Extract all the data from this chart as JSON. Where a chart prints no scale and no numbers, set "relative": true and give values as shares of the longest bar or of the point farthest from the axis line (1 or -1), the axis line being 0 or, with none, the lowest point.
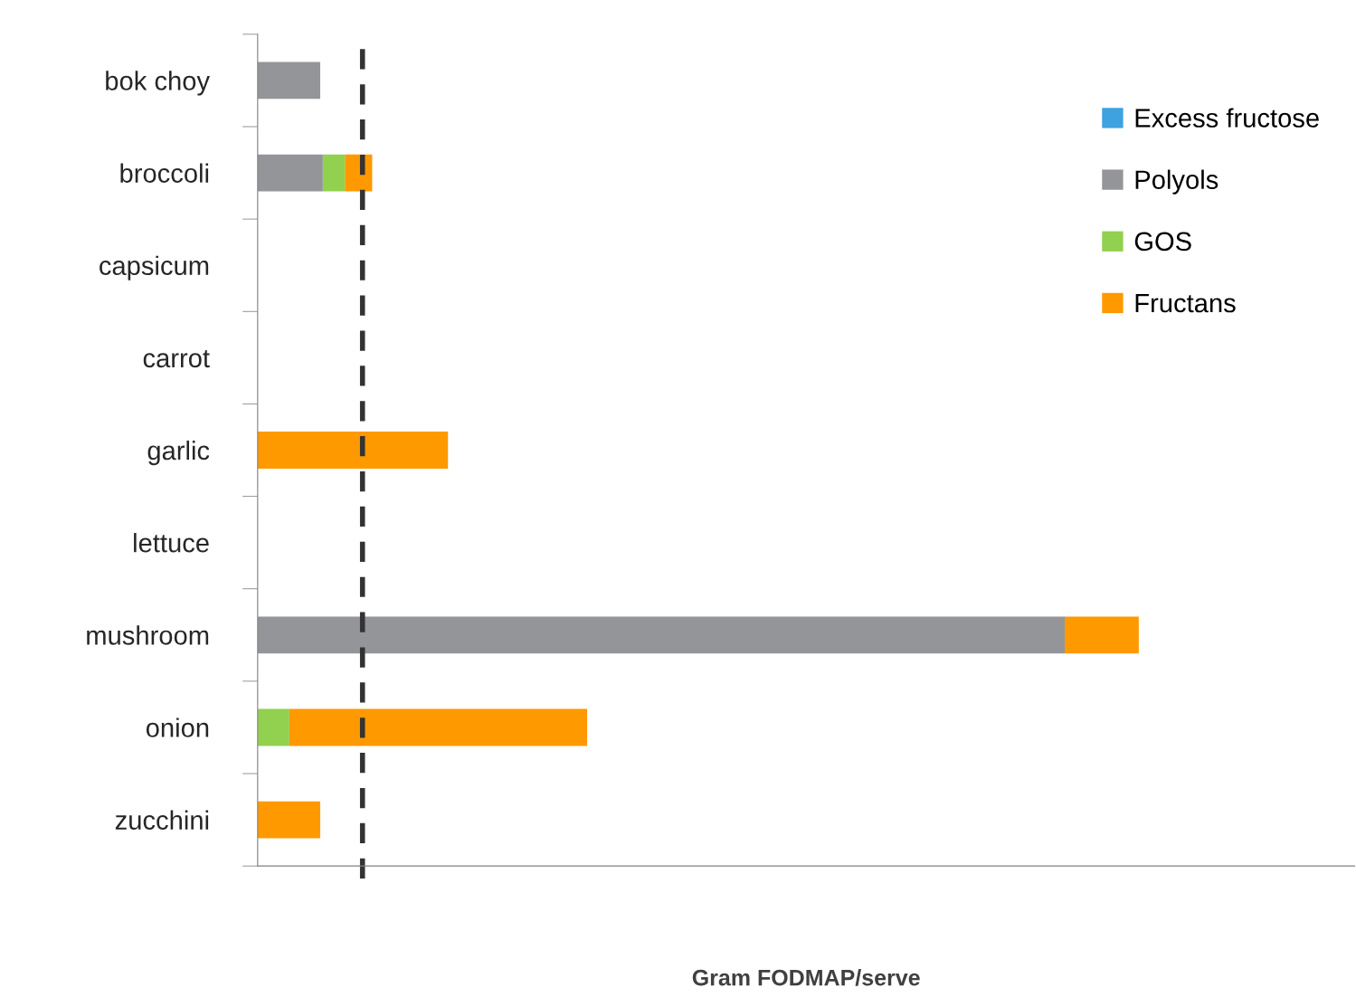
{
  "chart_data": {
    "type": "bar",
    "orientation": "horizontal",
    "stacked": true,
    "relative": true,
    "xlabel": "Gram FODMAP/serve",
    "categories": [
      "bok choy",
      "broccoli",
      "capsicum",
      "carrot",
      "garlic",
      "lettuce",
      "mushroom",
      "onion",
      "zucchini"
    ],
    "series": [
      {
        "name": "Excess fructose",
        "color": "#3ea1e0",
        "values": [
          0,
          0,
          0,
          0,
          0,
          0,
          0,
          0,
          0
        ]
      },
      {
        "name": "Polyols",
        "color": "#939598",
        "values": [
          0.071,
          0.074,
          0,
          0,
          0,
          0,
          0.916,
          0,
          0
        ]
      },
      {
        "name": "GOS",
        "color": "#92d050",
        "values": [
          0,
          0.025,
          0,
          0,
          0,
          0,
          0,
          0.036,
          0
        ]
      },
      {
        "name": "Fructans",
        "color": "#ff9900",
        "values": [
          0,
          0.031,
          0,
          0,
          0.216,
          0,
          0.084,
          0.338,
          0.071
        ]
      }
    ],
    "ref_lines": [
      {
        "axis": "x",
        "value": 0.119,
        "label": null,
        "color": "#333333",
        "line_style": "dashed"
      }
    ],
    "legend": "top right",
    "grid": false
  }
}
